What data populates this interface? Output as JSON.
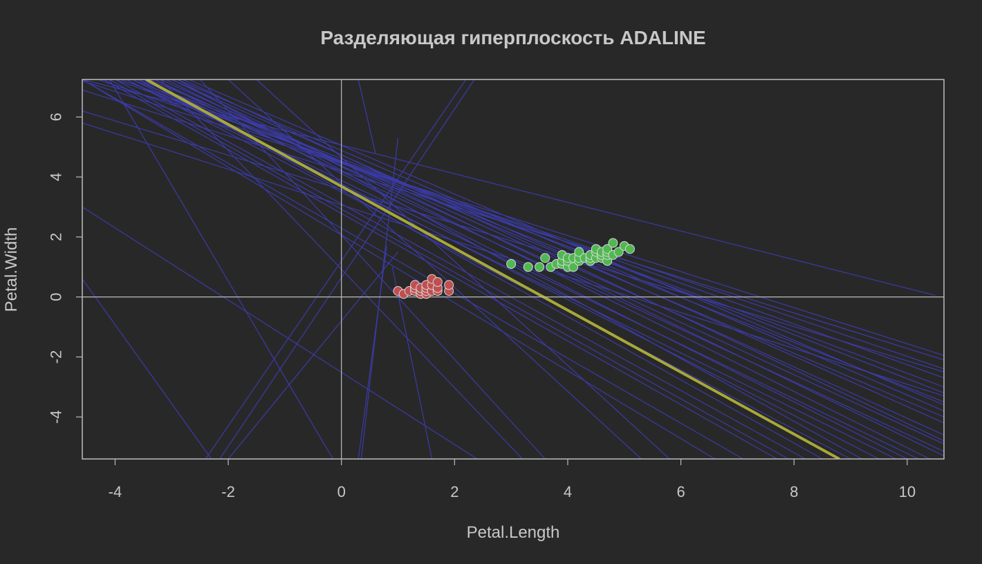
{
  "chart_data": {
    "type": "scatter",
    "title": "Разделяющая гиперплоскость ADALINE",
    "xlabel": "Petal.Length",
    "ylabel": "Petal.Width",
    "xlim": [
      -4.58,
      10.65
    ],
    "ylim": [
      -5.4,
      7.25
    ],
    "x_ticks": [
      -4,
      -2,
      0,
      2,
      4,
      6,
      8,
      10
    ],
    "y_ticks": [
      -4,
      -2,
      0,
      2,
      4,
      6
    ],
    "reference_lines": {
      "x": 0,
      "y": 0
    },
    "colors": {
      "background": "#282828",
      "frame": "#bdbdbd",
      "text": "#c8c8c8",
      "hyperplane": "#3b3ba8",
      "final_line": "#a8a83a",
      "setosa_fill": "#c05050",
      "versicolor_fill": "#50b850",
      "marker_edge": "#d8d8d8"
    },
    "final_line": {
      "x0": -3.45,
      "y0": 7.25,
      "x1": 8.8,
      "y1": -5.4
    },
    "iteration_lines": [
      {
        "x0": -3.5,
        "y0": 7.25,
        "x1": 10.65,
        "y1": -5.15
      },
      {
        "x0": -3.3,
        "y0": 7.25,
        "x1": 10.65,
        "y1": -4.9
      },
      {
        "x0": -3.2,
        "y0": 7.25,
        "x1": 10.65,
        "y1": -4.6
      },
      {
        "x0": -3.0,
        "y0": 7.25,
        "x1": 10.65,
        "y1": -4.2
      },
      {
        "x0": -2.9,
        "y0": 7.25,
        "x1": 10.65,
        "y1": -3.8
      },
      {
        "x0": -3.7,
        "y0": 7.25,
        "x1": 10.65,
        "y1": -3.5
      },
      {
        "x0": -3.9,
        "y0": 7.25,
        "x1": 10.65,
        "y1": -3.0
      },
      {
        "x0": -4.0,
        "y0": 7.25,
        "x1": 10.65,
        "y1": -2.7
      },
      {
        "x0": -4.3,
        "y0": 7.25,
        "x1": 10.65,
        "y1": -2.4
      },
      {
        "x0": -4.58,
        "y0": 7.2,
        "x1": 10.65,
        "y1": -1.95
      },
      {
        "x0": -4.58,
        "y0": 6.9,
        "x1": 10.65,
        "y1": -2.1
      },
      {
        "x0": -4.58,
        "y0": 7.25,
        "x1": 10.5,
        "y1": 0.05
      },
      {
        "x0": -4.58,
        "y0": 7.25,
        "x1": 6.6,
        "y1": -5.4
      },
      {
        "x0": -4.58,
        "y0": 7.25,
        "x1": 7.1,
        "y1": -5.4
      },
      {
        "x0": -4.2,
        "y0": 7.25,
        "x1": 7.7,
        "y1": -5.4
      },
      {
        "x0": -4.0,
        "y0": 7.25,
        "x1": 8.2,
        "y1": -5.4
      },
      {
        "x0": -3.8,
        "y0": 7.25,
        "x1": 9.0,
        "y1": -5.4
      },
      {
        "x0": -3.6,
        "y0": 7.25,
        "x1": 9.5,
        "y1": -5.4
      },
      {
        "x0": -3.3,
        "y0": 7.25,
        "x1": 10.0,
        "y1": -5.4
      },
      {
        "x0": -3.1,
        "y0": 7.25,
        "x1": 10.4,
        "y1": -5.4
      },
      {
        "x0": -4.58,
        "y0": 0.6,
        "x1": -2.3,
        "y1": -5.4
      },
      {
        "x0": -4.1,
        "y0": 7.25,
        "x1": -0.15,
        "y1": -5.4
      },
      {
        "x0": -3.2,
        "y0": 7.25,
        "x1": 3.2,
        "y1": -5.4
      },
      {
        "x0": -2.5,
        "y0": 7.25,
        "x1": 3.6,
        "y1": -5.4
      },
      {
        "x0": -2.0,
        "y0": 7.25,
        "x1": 5.3,
        "y1": -5.4
      },
      {
        "x0": -1.5,
        "y0": 7.25,
        "x1": 5.8,
        "y1": -5.4
      },
      {
        "x0": -4.58,
        "y0": 3.0,
        "x1": 2.4,
        "y1": -5.4
      },
      {
        "x0": -2.4,
        "y0": -5.4,
        "x1": 2.2,
        "y1": 7.25
      },
      {
        "x0": -2.15,
        "y0": -5.4,
        "x1": 2.35,
        "y1": 7.25
      },
      {
        "x0": -2.0,
        "y0": -5.4,
        "x1": 1.0,
        "y1": 1.5
      },
      {
        "x0": 0.3,
        "y0": -5.4,
        "x1": 0.8,
        "y1": 1.7
      },
      {
        "x0": 0.35,
        "y0": -5.4,
        "x1": 1.0,
        "y1": 5.3
      },
      {
        "x0": 0.3,
        "y0": 7.25,
        "x1": 0.6,
        "y1": 4.8
      },
      {
        "x0": 1.6,
        "y0": -5.4,
        "x1": 0.9,
        "y1": 1.0
      },
      {
        "x0": -4.58,
        "y0": 6.2,
        "x1": 10.65,
        "y1": -2.5
      },
      {
        "x0": -4.58,
        "y0": 5.8,
        "x1": 10.65,
        "y1": -3.3
      },
      {
        "x0": -2.8,
        "y0": 7.25,
        "x1": 10.65,
        "y1": -4.8
      },
      {
        "x0": -3.4,
        "y0": 7.25,
        "x1": 10.65,
        "y1": -4.0
      },
      {
        "x0": -3.6,
        "y0": 7.25,
        "x1": 10.65,
        "y1": -3.2
      },
      {
        "x0": -2.7,
        "y0": 7.25,
        "x1": 10.65,
        "y1": -3.6
      },
      {
        "x0": -3.8,
        "y0": 7.25,
        "x1": 9.8,
        "y1": -5.4
      },
      {
        "x0": -3.7,
        "y0": 7.25,
        "x1": 10.2,
        "y1": -5.4
      },
      {
        "x0": -3.5,
        "y0": 7.25,
        "x1": 8.5,
        "y1": -5.4
      },
      {
        "x0": -4.1,
        "y0": 7.25,
        "x1": 7.9,
        "y1": -5.4
      },
      {
        "x0": -2.9,
        "y0": 7.25,
        "x1": 9.2,
        "y1": -5.4
      },
      {
        "x0": -3.0,
        "y0": 7.25,
        "x1": 10.65,
        "y1": -5.3
      }
    ],
    "series": [
      {
        "color": "#c05050",
        "points": [
          [
            1.0,
            0.2
          ],
          [
            1.1,
            0.1
          ],
          [
            1.2,
            0.2
          ],
          [
            1.3,
            0.2
          ],
          [
            1.3,
            0.3
          ],
          [
            1.3,
            0.4
          ],
          [
            1.4,
            0.1
          ],
          [
            1.4,
            0.2
          ],
          [
            1.4,
            0.3
          ],
          [
            1.5,
            0.1
          ],
          [
            1.5,
            0.2
          ],
          [
            1.5,
            0.3
          ],
          [
            1.5,
            0.4
          ],
          [
            1.6,
            0.2
          ],
          [
            1.6,
            0.4
          ],
          [
            1.6,
            0.6
          ],
          [
            1.7,
            0.2
          ],
          [
            1.7,
            0.3
          ],
          [
            1.7,
            0.5
          ],
          [
            1.9,
            0.2
          ],
          [
            1.9,
            0.4
          ]
        ]
      },
      {
        "color": "#50b850",
        "points": [
          [
            3.0,
            1.1
          ],
          [
            3.3,
            1.0
          ],
          [
            3.5,
            1.0
          ],
          [
            3.6,
            1.3
          ],
          [
            3.7,
            1.0
          ],
          [
            3.8,
            1.1
          ],
          [
            3.9,
            1.1
          ],
          [
            3.9,
            1.2
          ],
          [
            3.9,
            1.4
          ],
          [
            4.0,
            1.0
          ],
          [
            4.0,
            1.2
          ],
          [
            4.0,
            1.3
          ],
          [
            4.1,
            1.0
          ],
          [
            4.1,
            1.3
          ],
          [
            4.2,
            1.2
          ],
          [
            4.2,
            1.3
          ],
          [
            4.2,
            1.5
          ],
          [
            4.3,
            1.3
          ],
          [
            4.4,
            1.2
          ],
          [
            4.4,
            1.3
          ],
          [
            4.4,
            1.4
          ],
          [
            4.5,
            1.3
          ],
          [
            4.5,
            1.5
          ],
          [
            4.5,
            1.6
          ],
          [
            4.6,
            1.3
          ],
          [
            4.6,
            1.4
          ],
          [
            4.6,
            1.5
          ],
          [
            4.7,
            1.2
          ],
          [
            4.7,
            1.4
          ],
          [
            4.7,
            1.5
          ],
          [
            4.7,
            1.6
          ],
          [
            4.8,
            1.4
          ],
          [
            4.8,
            1.8
          ],
          [
            4.9,
            1.5
          ],
          [
            5.0,
            1.7
          ],
          [
            5.1,
            1.6
          ]
        ]
      }
    ]
  }
}
